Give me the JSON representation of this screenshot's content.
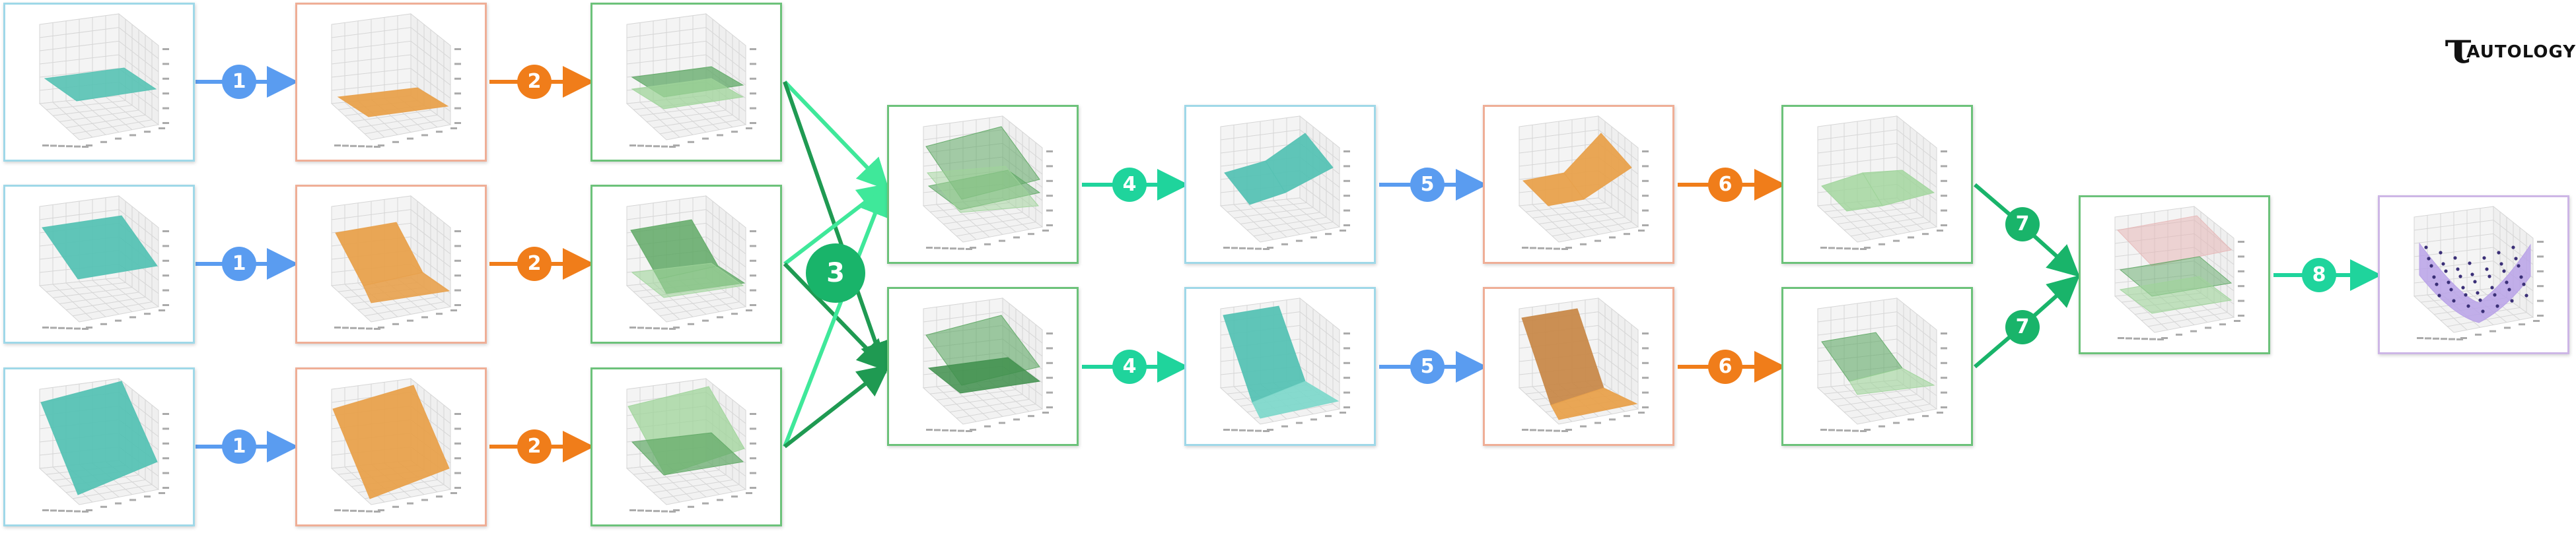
{
  "logo": {
    "mark": "τ",
    "text": "AUTOLOGY"
  },
  "colors": {
    "cyan_border": "#9fd8e8",
    "orange_border": "#efae96",
    "green_border": "#6cc27a",
    "purple_border": "#cdb6e6",
    "blue_badge": "#5a9cf0",
    "orange_badge": "#f07d1a",
    "green_badge": "#19b46a",
    "teal_badge": "#1fd49c",
    "dark_green_arrow": "#1f9a52",
    "light_green_arrow": "#3fe89a"
  },
  "step_badges": {
    "s1": "1",
    "s2": "2",
    "s3": "3",
    "s4": "4",
    "s5": "5",
    "s6": "6",
    "s7": "7",
    "s8": "8"
  },
  "panels": [
    {
      "id": "r1c1",
      "kind": "cyan",
      "surface": "flat-teal"
    },
    {
      "id": "r2c1",
      "kind": "cyan",
      "surface": "tilt-teal"
    },
    {
      "id": "r3c1",
      "kind": "cyan",
      "surface": "steep-teal"
    },
    {
      "id": "r1c2",
      "kind": "orange",
      "surface": "flat-orange"
    },
    {
      "id": "r2c2",
      "kind": "orange",
      "surface": "relu-orange"
    },
    {
      "id": "r3c2",
      "kind": "orange",
      "surface": "steep-orange"
    },
    {
      "id": "r1c3",
      "kind": "green",
      "surface": "double-flat-green"
    },
    {
      "id": "r2c3",
      "kind": "green",
      "surface": "double-relu-green"
    },
    {
      "id": "r3c3",
      "kind": "green",
      "surface": "double-steep-green"
    },
    {
      "id": "top4",
      "kind": "green",
      "surface": "cross-planes-green"
    },
    {
      "id": "bot4",
      "kind": "green",
      "surface": "stacked-planes-green"
    },
    {
      "id": "top5",
      "kind": "cyan",
      "surface": "relu-ridge-teal"
    },
    {
      "id": "bot5",
      "kind": "cyan",
      "surface": "relu-valley-teal"
    },
    {
      "id": "top6",
      "kind": "orange",
      "surface": "relu-ridge-orange"
    },
    {
      "id": "bot6",
      "kind": "orange",
      "surface": "relu-valley-orange"
    },
    {
      "id": "top7",
      "kind": "green",
      "surface": "merged-green"
    },
    {
      "id": "bot7",
      "kind": "green",
      "surface": "merged-flat-green"
    },
    {
      "id": "final",
      "kind": "green",
      "surface": "combined-green-red"
    },
    {
      "id": "result",
      "kind": "purple",
      "surface": "saddle-points"
    }
  ]
}
